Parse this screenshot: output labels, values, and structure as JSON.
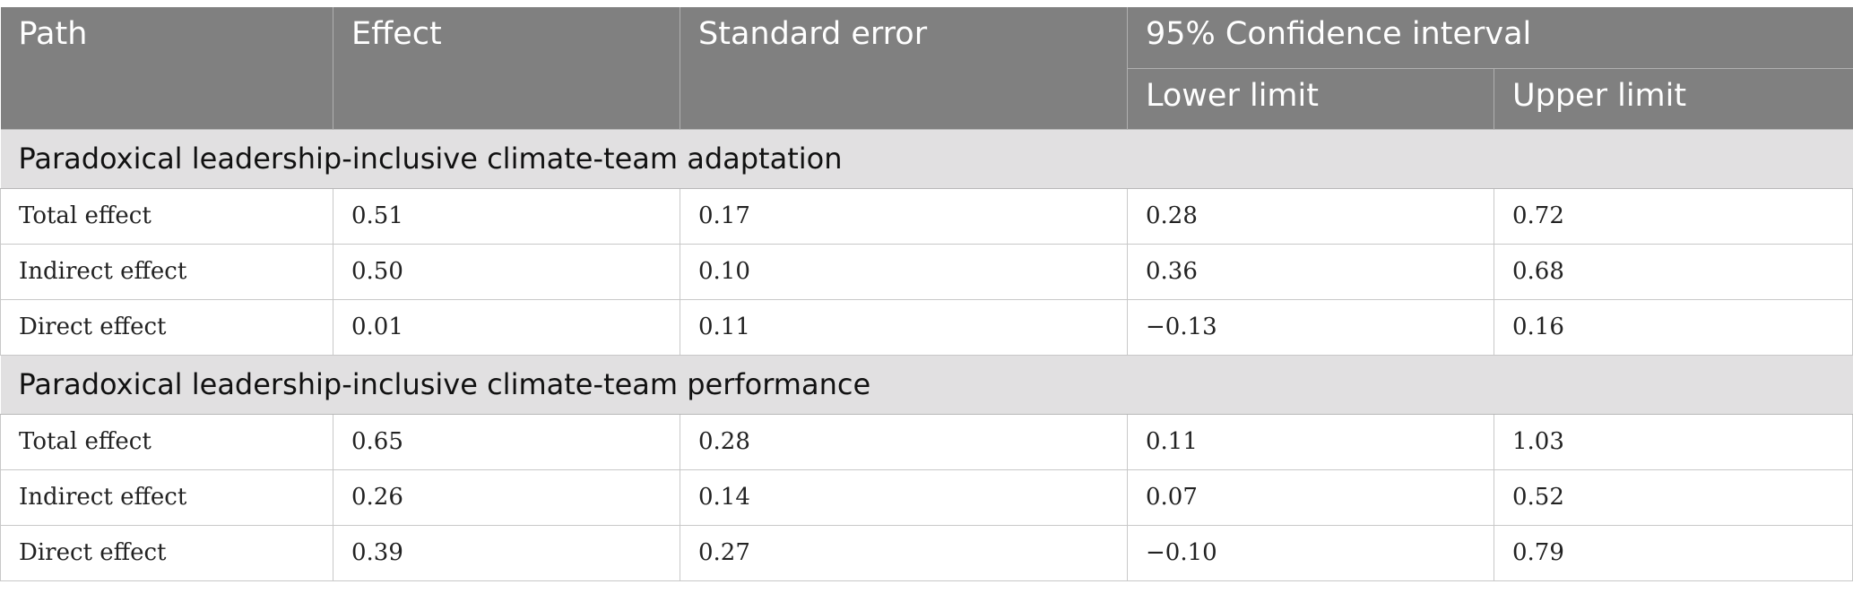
{
  "header": {
    "path": "Path",
    "effect": "Effect",
    "standard_error": "Standard error",
    "confidence_interval": "95% Confidence interval",
    "lower_limit": "Lower limit",
    "upper_limit": "Upper limit"
  },
  "groups": [
    {
      "title": "Paradoxical leadership-inclusive climate-team adaptation",
      "rows": [
        {
          "path": "Total effect",
          "effect": "0.51",
          "se": "0.17",
          "lower": "0.28",
          "upper": "0.72"
        },
        {
          "path": "Indirect effect",
          "effect": "0.50",
          "se": "0.10",
          "lower": "0.36",
          "upper": "0.68"
        },
        {
          "path": "Direct effect",
          "effect": "0.01",
          "se": "0.11",
          "lower": "−0.13",
          "upper": "0.16"
        }
      ]
    },
    {
      "title": "Paradoxical leadership-inclusive climate-team performance",
      "rows": [
        {
          "path": "Total effect",
          "effect": "0.65",
          "se": "0.28",
          "lower": "0.11",
          "upper": "1.03"
        },
        {
          "path": "Indirect effect",
          "effect": "0.26",
          "se": "0.14",
          "lower": "0.07",
          "upper": "0.52"
        },
        {
          "path": "Direct effect",
          "effect": "0.39",
          "se": "0.27",
          "lower": "−0.10",
          "upper": "0.79"
        }
      ]
    }
  ]
}
